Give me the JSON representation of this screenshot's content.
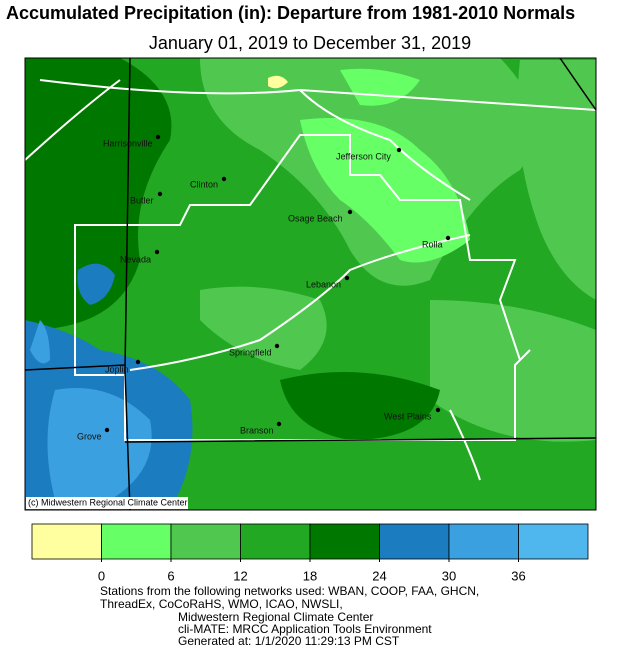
{
  "title": "Accumulated Precipitation (in): Departure from 1981-2010 Normals",
  "subtitle": "January 01, 2019 to December 31, 2019",
  "credit": "(c) Midwestern Regional Climate Center",
  "cities": [
    {
      "label": "Harrisonville"
    },
    {
      "label": "Clinton"
    },
    {
      "label": "Butler"
    },
    {
      "label": "Jefferson City"
    },
    {
      "label": "Osage Beach"
    },
    {
      "label": "Rolla"
    },
    {
      "label": "Nevada"
    },
    {
      "label": "Lebanon"
    },
    {
      "label": "Springfield"
    },
    {
      "label": "Joplin"
    },
    {
      "label": "West Plains"
    },
    {
      "label": "Branson"
    },
    {
      "label": "Grove"
    }
  ],
  "legend": {
    "colors": [
      "#ffffa0",
      "#66ff66",
      "#50c850",
      "#22a822",
      "#007800",
      "#1c7cc0",
      "#3aa0e0",
      "#4fb6ee"
    ],
    "ticks": [
      0,
      6,
      12,
      18,
      24,
      30,
      36
    ]
  },
  "footer": [
    "Stations from the following networks used: WBAN, COOP, FAA, GHCN,",
    "ThreadEx, CoCoRaHS, WMO, ICAO, NWSLI,",
    "Midwestern Regional Climate Center",
    "cli-MATE: MRCC Application Tools Environment",
    "Generated at: 1/1/2020 11:29:13 PM CST"
  ]
}
